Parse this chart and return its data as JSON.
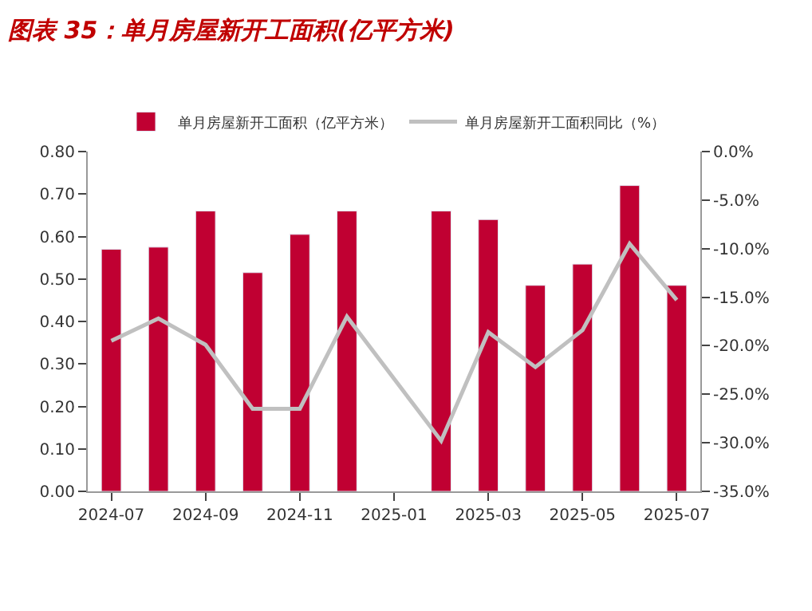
{
  "chart_data": {
    "type": "bar",
    "title": "图表 35：单月房屋新开工面积(亿平方米)",
    "categories": [
      "2024-07",
      null,
      "2024-09",
      null,
      "2024-11",
      null,
      "2025-01",
      null,
      "2025-03",
      null,
      "2025-05",
      null,
      "2025-07"
    ],
    "series": [
      {
        "name": "单月房屋新开工面积（亿平方米）",
        "color": "#c00032",
        "values": [
          0.57,
          0.575,
          0.66,
          0.515,
          0.605,
          0.66,
          null,
          0.66,
          0.64,
          0.485,
          0.535,
          0.72,
          0.485
        ]
      },
      {
        "name": "单月房屋新开工面积同比（%）",
        "type": "line",
        "axis": "y2",
        "color": "#c0c0c0",
        "values": [
          -19.5,
          -17.2,
          -19.9,
          -26.5,
          -26.5,
          -17.0,
          null,
          -29.8,
          -18.6,
          -22.2,
          -18.4,
          -9.5,
          -15.3
        ]
      }
    ],
    "ylim": [
      0,
      0.8
    ],
    "yticks": [
      {
        "value": 0,
        "label": "0.00"
      },
      {
        "value": 0.1,
        "label": "0.10"
      },
      {
        "value": 0.2,
        "label": "0.20"
      },
      {
        "value": 0.3,
        "label": "0.30"
      },
      {
        "value": 0.4,
        "label": "0.40"
      },
      {
        "value": 0.5,
        "label": "0.50"
      },
      {
        "value": 0.6,
        "label": "0.60"
      },
      {
        "value": 0.7,
        "label": "0.70"
      },
      {
        "value": 0.8,
        "label": "0.80"
      }
    ],
    "y2lim": [
      -35,
      0
    ],
    "y2ticks": [
      {
        "value": -35,
        "label": "-35.0%"
      },
      {
        "value": -30,
        "label": "-30.0%"
      },
      {
        "value": -25,
        "label": "-25.0%"
      },
      {
        "value": -20,
        "label": "-20.0%"
      },
      {
        "value": -15,
        "label": "-15.0%"
      },
      {
        "value": -10,
        "label": "-10.0%"
      },
      {
        "value": -5,
        "label": "-5.0%"
      },
      {
        "value": 0,
        "label": "0.0%"
      }
    ],
    "legend": "top"
  }
}
